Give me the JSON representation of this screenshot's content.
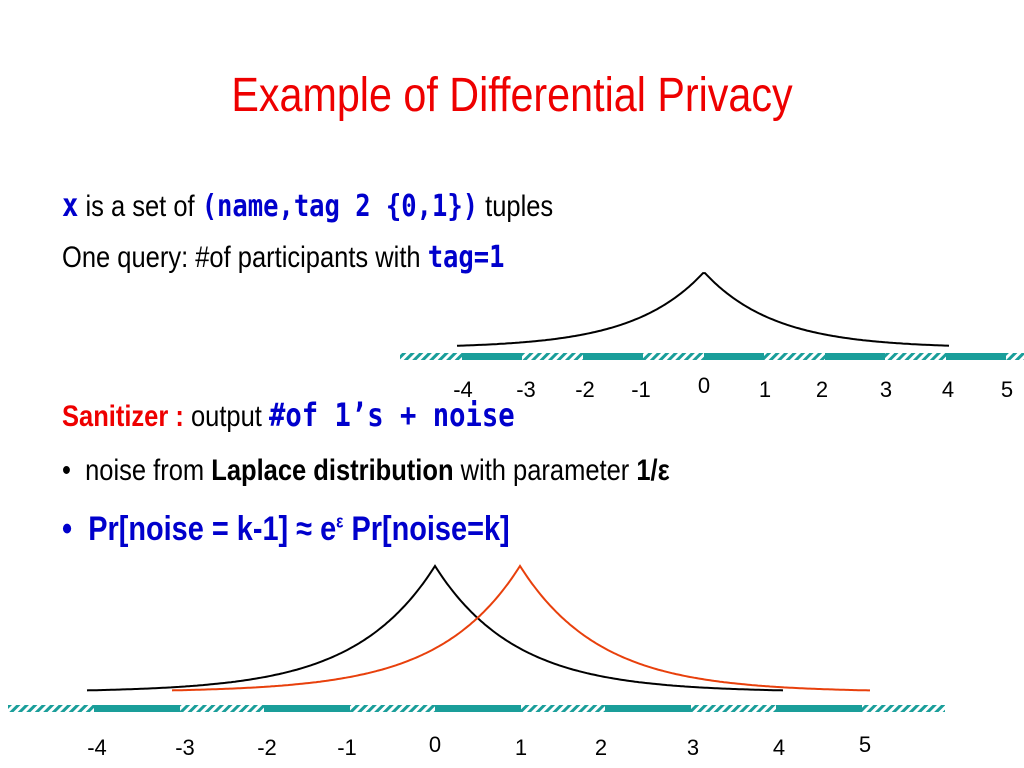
{
  "title": "Example of Differential Privacy",
  "line1": {
    "var": "x",
    "text1": "is a set of",
    "tuple": "(name,tag 2 {0,1})",
    "text2": "tuples"
  },
  "line2": {
    "text": "One query: #of participants with",
    "query": "tag=1"
  },
  "sanitizer": {
    "label": "Sanitizer :",
    "text": "output",
    "formula": "#of 1’s + noise"
  },
  "bullets": [
    {
      "marker": "•",
      "text1": "noise from",
      "bold": "Laplace distribution",
      "text2": "with parameter",
      "param": "1/ε"
    },
    {
      "marker": "•",
      "lhs": "Pr[noise = k-1] ≈ e",
      "sup": "ε",
      "rhs": "Pr[noise=k]"
    }
  ],
  "axis_top": {
    "labels": [
      "-4",
      "-3",
      "-2",
      "-1",
      "0",
      "1",
      "2",
      "3",
      "4",
      "5"
    ]
  },
  "axis_bottom": {
    "labels": [
      "-4",
      "-3",
      "-2",
      "-1",
      "0",
      "1",
      "2",
      "3",
      "4",
      "5"
    ]
  }
}
